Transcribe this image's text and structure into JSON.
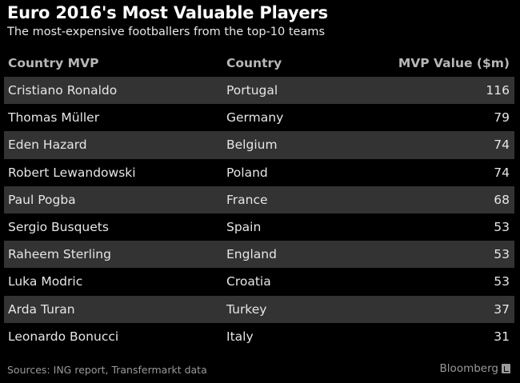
{
  "chart_data": {
    "type": "table",
    "title": "Euro 2016's Most Valuable Players",
    "subtitle": "The most-expensive footballers from the top-10 teams",
    "columns": [
      "Country MVP",
      "Country",
      "MVP Value ($m)"
    ],
    "rows": [
      [
        "Cristiano Ronaldo",
        "Portugal",
        "116"
      ],
      [
        "Thomas Müller",
        "Germany",
        "79"
      ],
      [
        "Eden Hazard",
        "Belgium",
        "74"
      ],
      [
        "Robert Lewandowski",
        "Poland",
        "74"
      ],
      [
        "Paul Pogba",
        "France",
        "68"
      ],
      [
        "Sergio Busquets",
        "Spain",
        "53"
      ],
      [
        "Raheem Sterling",
        "England",
        "53"
      ],
      [
        "Luka Modric",
        "Croatia",
        "53"
      ],
      [
        "Arda Turan",
        "Turkey",
        "37"
      ],
      [
        "Leonardo Bonucci",
        "Italy",
        "31"
      ]
    ],
    "source": "Sources: ING report, Transfermarkt data"
  },
  "footer": {
    "brand": "Bloomberg",
    "brand_icon": "bloomberg-logo-icon"
  },
  "colors": {
    "background": "#000000",
    "row_shade": "#333333",
    "header_text": "#b7b7b7",
    "body_text": "#e6e6e6"
  }
}
